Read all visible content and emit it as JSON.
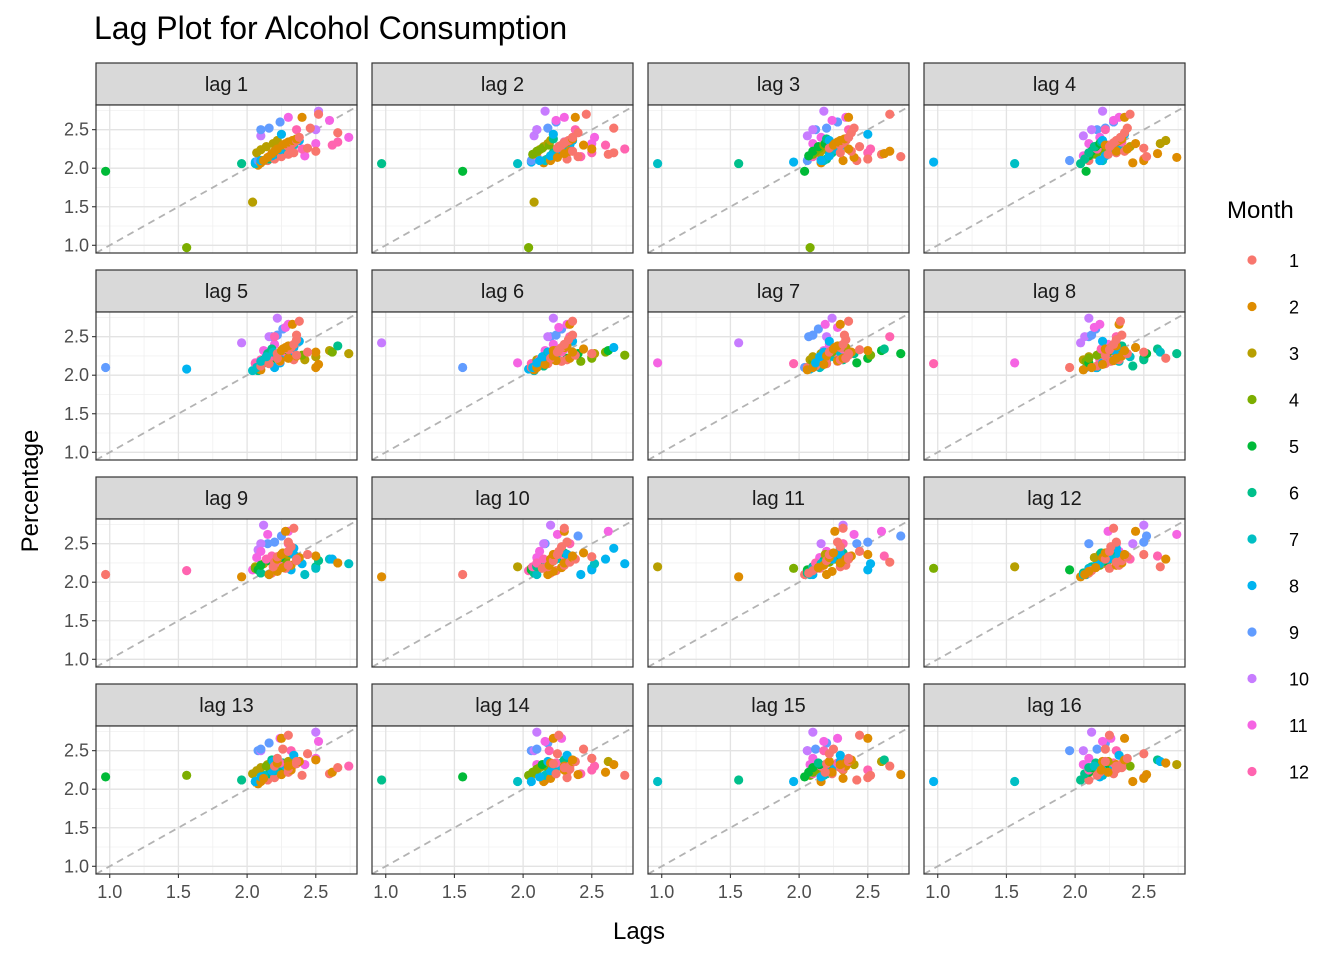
{
  "chart_data": {
    "type": "scatter",
    "title": "Lag Plot for Alcohol Consumption",
    "xlabel": "Lags",
    "ylabel": "Percentage",
    "facets": [
      "lag 1",
      "lag 2",
      "lag 3",
      "lag 4",
      "lag 5",
      "lag 6",
      "lag 7",
      "lag 8",
      "lag 9",
      "lag 10",
      "lag 11",
      "lag 12",
      "lag 13",
      "lag 14",
      "lag 15",
      "lag 16"
    ],
    "xlim": [
      0.9,
      2.8
    ],
    "ylim": [
      0.9,
      2.82
    ],
    "x_ticks": [
      1.0,
      1.5,
      2.0,
      2.5
    ],
    "x_tick_labels": [
      "1.0",
      "1.5",
      "2.0",
      "2.5"
    ],
    "y_ticks": [
      1.0,
      1.5,
      2.0,
      2.5
    ],
    "y_tick_labels": [
      "1.0",
      "1.5",
      "2.0",
      "2.5"
    ],
    "reference_line": "y = x (dashed grey)",
    "grid": true,
    "legend": {
      "title": "Month",
      "position": "right",
      "entries": [
        "1",
        "2",
        "3",
        "4",
        "5",
        "6",
        "7",
        "8",
        "9",
        "10",
        "11",
        "12"
      ]
    },
    "month_colors": [
      "#F8766D",
      "#DE8C00",
      "#B79F00",
      "#7CAE00",
      "#00BA38",
      "#00C08B",
      "#00BFC4",
      "#00B4F0",
      "#619CFF",
      "#C77CFF",
      "#F564E3",
      "#FF64B0"
    ],
    "series": [
      {
        "name": "1",
        "color": "#F8766D",
        "values": [
          2.08,
          2.1,
          2.12,
          2.15,
          2.18,
          2.2,
          2.22,
          2.26,
          2.28,
          2.3,
          2.33,
          2.36,
          2.4,
          2.46,
          2.52,
          2.7
        ]
      },
      {
        "name": "2",
        "color": "#DE8C00",
        "values": [
          2.04,
          2.07,
          2.1,
          2.14,
          2.19,
          2.22,
          2.25,
          2.3,
          2.32,
          2.34,
          2.36,
          2.38,
          2.66
        ]
      },
      {
        "name": "3",
        "color": "#B79F00",
        "values": [
          1.56,
          2.2,
          2.24,
          2.28,
          2.32,
          2.36
        ]
      },
      {
        "name": "4",
        "color": "#7CAE00",
        "values": [
          0.97,
          2.18,
          2.22,
          2.26,
          2.3
        ]
      },
      {
        "name": "5",
        "color": "#00BA38",
        "values": [
          1.96,
          2.16,
          2.22,
          2.28,
          2.32
        ]
      },
      {
        "name": "6",
        "color": "#00C08B",
        "values": [
          2.06,
          2.12,
          2.2,
          2.28,
          2.34,
          2.38
        ]
      },
      {
        "name": "7",
        "color": "#00BFC4",
        "values": [
          2.06,
          2.1,
          2.18,
          2.24,
          2.3
        ]
      },
      {
        "name": "8",
        "color": "#00B4F0",
        "values": [
          2.08,
          2.1,
          2.16,
          2.24,
          2.3,
          2.36,
          2.44
        ]
      },
      {
        "name": "9",
        "color": "#619CFF",
        "values": [
          2.1,
          2.5,
          2.52,
          2.6
        ]
      },
      {
        "name": "10",
        "color": "#C77CFF",
        "values": [
          2.42,
          2.5,
          2.74
        ]
      },
      {
        "name": "11",
        "color": "#F564E3",
        "values": [
          2.16,
          2.32,
          2.4,
          2.62,
          2.66
        ]
      },
      {
        "name": "12",
        "color": "#FF64B0",
        "values": [
          2.15,
          2.2,
          2.25,
          2.3,
          2.34,
          2.5
        ]
      }
    ]
  }
}
